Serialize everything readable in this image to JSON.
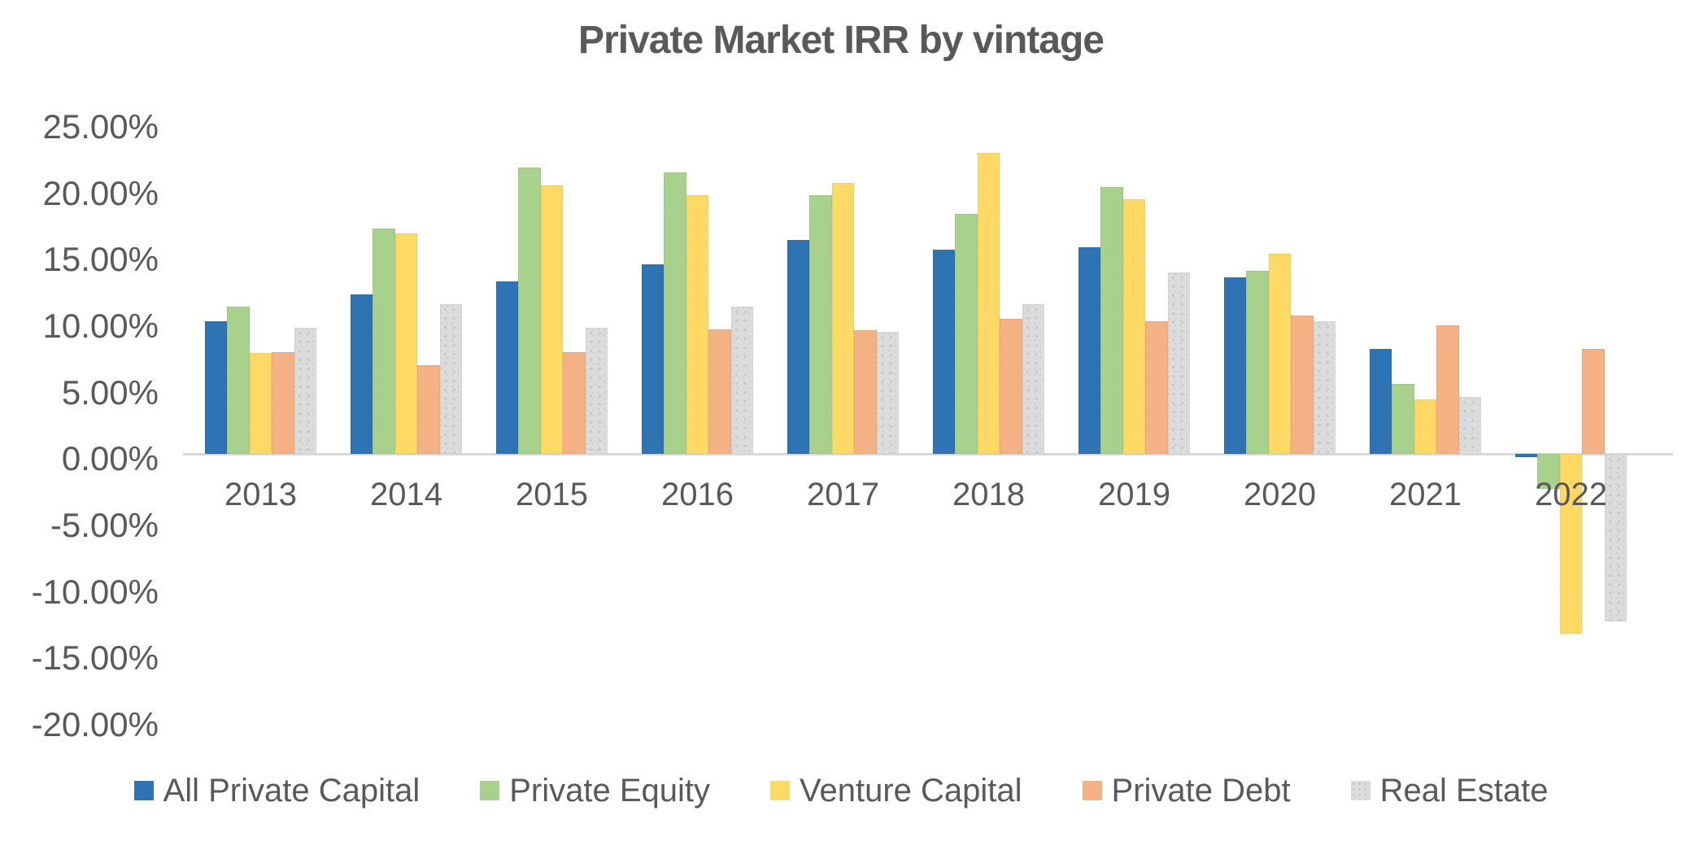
{
  "chart_data": {
    "type": "bar",
    "title": "Private Market IRR by vintage",
    "categories": [
      "2013",
      "2014",
      "2015",
      "2016",
      "2017",
      "2018",
      "2019",
      "2020",
      "2021",
      "2022"
    ],
    "series": [
      {
        "name": "All Private Capital",
        "color": "#2E74B5",
        "values": [
          10.0,
          12.0,
          13.0,
          14.3,
          16.1,
          15.4,
          15.6,
          13.3,
          7.9,
          -0.2
        ]
      },
      {
        "name": "Private Equity",
        "color": "#A9D18E",
        "values": [
          11.1,
          17.0,
          21.6,
          21.2,
          19.5,
          18.1,
          20.1,
          13.8,
          5.3,
          -2.6
        ]
      },
      {
        "name": "Venture Capital",
        "color": "#FFD966",
        "values": [
          7.6,
          16.6,
          20.2,
          19.5,
          20.4,
          22.7,
          19.2,
          15.1,
          4.1,
          -13.5
        ]
      },
      {
        "name": "Private Debt",
        "color": "#F4B183",
        "values": [
          7.7,
          6.7,
          7.7,
          9.4,
          9.3,
          10.2,
          10.0,
          10.4,
          9.7,
          7.9
        ]
      },
      {
        "name": "Real Estate",
        "color": "#DCDCDC",
        "pattern": "dots",
        "values": [
          9.5,
          11.3,
          9.5,
          11.1,
          9.2,
          11.3,
          13.7,
          10.0,
          4.3,
          -12.6
        ]
      }
    ],
    "ylim": [
      -20,
      25
    ],
    "yticks": [
      {
        "value": 25,
        "label": "25.00%"
      },
      {
        "value": 20,
        "label": "20.00%"
      },
      {
        "value": 15,
        "label": "15.00%"
      },
      {
        "value": 10,
        "label": "10.00%"
      },
      {
        "value": 5,
        "label": "5.00%"
      },
      {
        "value": 0,
        "label": "0.00%"
      },
      {
        "value": -5,
        "label": "-5.00%"
      },
      {
        "value": -10,
        "label": "-10.00%"
      },
      {
        "value": -15,
        "label": "-15.00%"
      },
      {
        "value": -20,
        "label": "-20.00%"
      }
    ],
    "grid": false,
    "legend_position": "bottom",
    "text_color": "#595959",
    "axis_line_color": "#D9D9D9"
  }
}
